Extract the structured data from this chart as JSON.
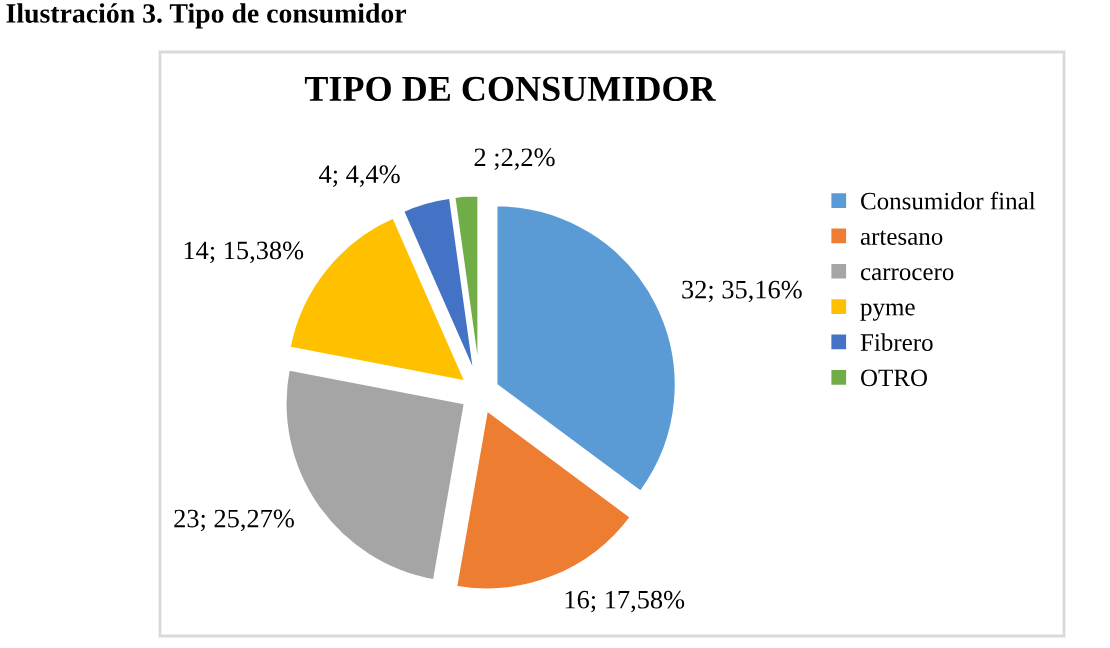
{
  "chart_data": {
    "type": "pie",
    "title": "TIPO DE CONSUMIDOR",
    "annotations": [
      "Ilustración 3. Tipo de consumidor"
    ],
    "categories": [
      "Consumidor final",
      "artesano",
      "carrocero",
      "pyme",
      "Fibrero",
      "OTRO"
    ],
    "values": [
      32,
      16,
      23,
      14,
      4,
      2
    ],
    "value_labels": [
      "32; 35,16%",
      "16; 17,58%",
      "23; 25,27%",
      "14; 15,38%",
      "4; 4,4%",
      "2 ;2,2%"
    ],
    "colors": [
      "#5b9bd5",
      "#ed7d31",
      "#a5a5a5",
      "#ffc000",
      "#4472c4",
      "#70ad47"
    ],
    "legend": "right"
  }
}
